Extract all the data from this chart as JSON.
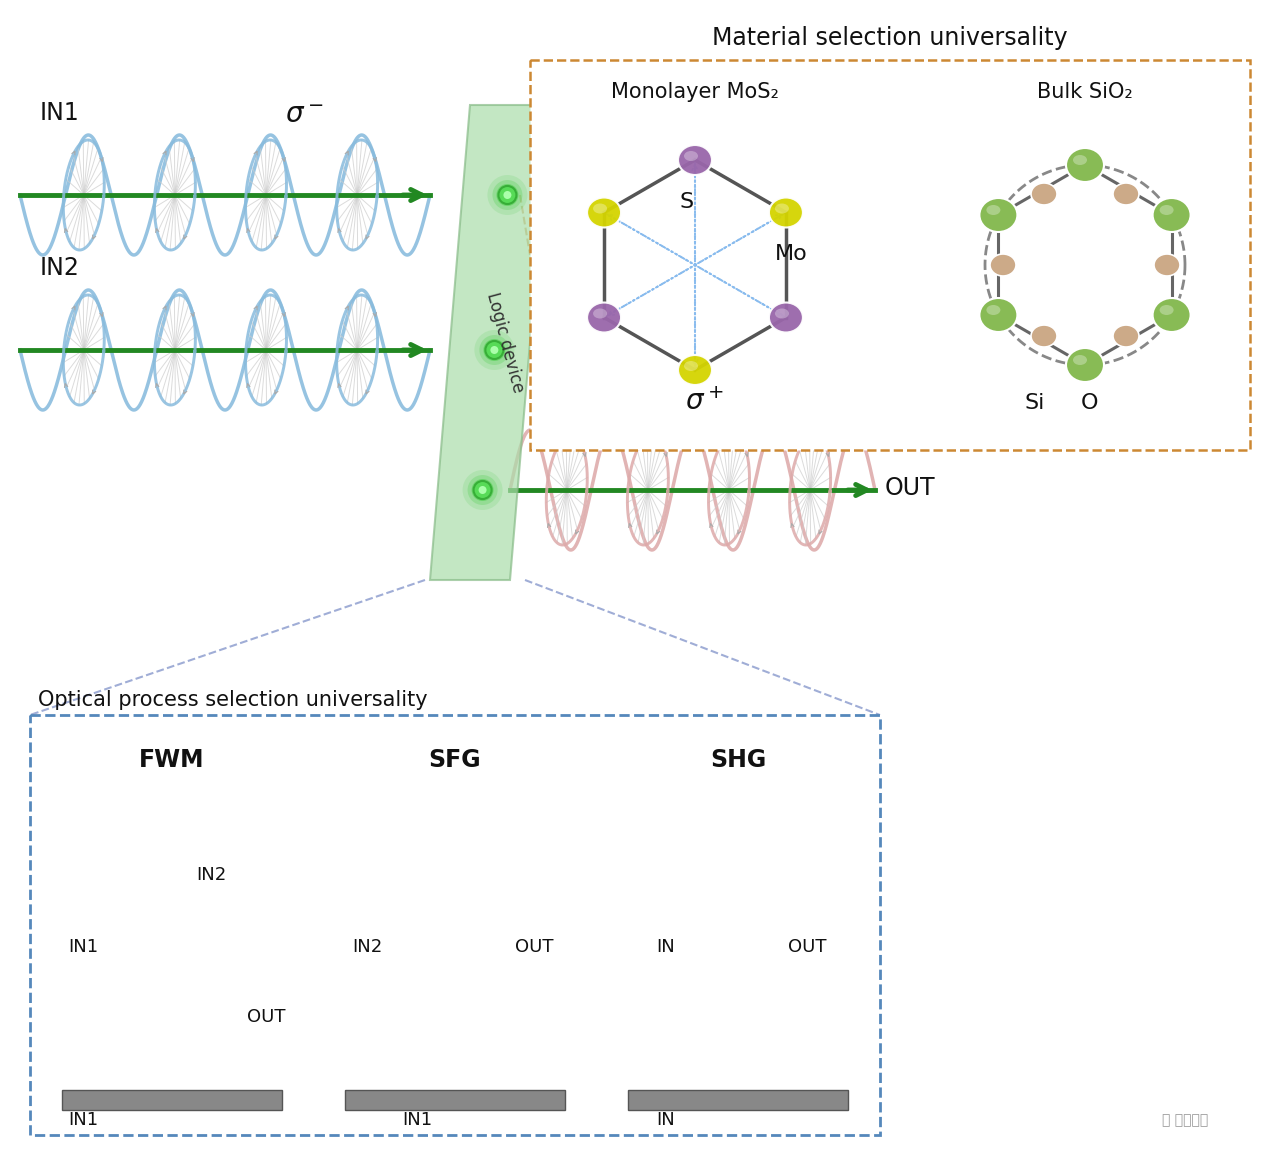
{
  "bg_color": "#ffffff",
  "main_title": "Material selection universality",
  "bottom_title": "Optical process selection universality",
  "MoS2_title": "Monolayer MoS₂",
  "SiO2_title": "Bulk SiO₂",
  "S_label": "S",
  "Mo_label": "Mo",
  "Si_label": "Si",
  "O_label": "O",
  "S_color": "#d4d400",
  "Mo_color": "#9966aa",
  "Si_color": "#88bb55",
  "O_color": "#ccaa88",
  "fwm_title": "FWM",
  "sfg_title": "SFG",
  "shg_title": "SHG",
  "in1_color": "#cc2222",
  "in2_fwm_color": "#b88c18",
  "out_fwm_color": "#22aa22",
  "in1_sfg_color": "#cc2222",
  "in2_sfg_color": "#b88c18",
  "out_sfg_color": "#22aadd",
  "in_shg_color": "#cc2222",
  "out_shg_color": "#6622aa",
  "helix_in_color": "#88bbdd",
  "helix_out_color": "#ddaaaa",
  "beam_color": "#228822",
  "logic_color": "#aaddaa",
  "logic_edge": "#88bb88",
  "box_edge_orange": "#cc8833",
  "box_edge_blue": "#5588bb"
}
